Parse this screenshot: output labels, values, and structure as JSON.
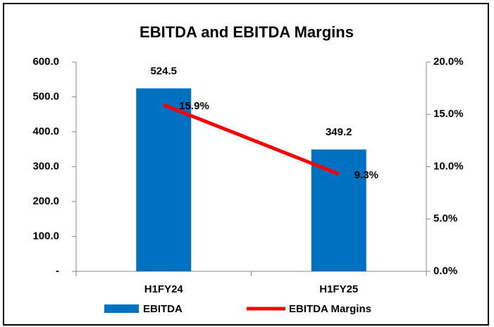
{
  "chart_data": {
    "type": "bar",
    "title": "EBITDA and EBITDA Margins",
    "categories": [
      "H1FY24",
      "H1FY25"
    ],
    "series": [
      {
        "name": "EBITDA",
        "type": "bar",
        "color": "#0070c0",
        "values": [
          524.5,
          349.2
        ]
      },
      {
        "name": "EBITDA Margins",
        "type": "line",
        "color": "#ff0000",
        "axis": "y2",
        "values": [
          15.9,
          9.3
        ],
        "value_labels": [
          "15.9%",
          "9.3%"
        ]
      }
    ],
    "ylim": [
      0,
      600
    ],
    "yticks": [
      {
        "value": 0,
        "label": "-"
      },
      {
        "value": 100,
        "label": "100.0"
      },
      {
        "value": 200,
        "label": "200.0"
      },
      {
        "value": 300,
        "label": "300.0"
      },
      {
        "value": 400,
        "label": "400.0"
      },
      {
        "value": 500,
        "label": "500.0"
      },
      {
        "value": 600,
        "label": "600.0"
      }
    ],
    "y2lim": [
      0,
      20
    ],
    "y2ticks": [
      {
        "value": 0,
        "label": "0.0%"
      },
      {
        "value": 5,
        "label": "5.0%"
      },
      {
        "value": 10,
        "label": "10.0%"
      },
      {
        "value": 15,
        "label": "15.0%"
      },
      {
        "value": 20,
        "label": "20.0%"
      }
    ],
    "grid": false,
    "legend": "bottom"
  }
}
